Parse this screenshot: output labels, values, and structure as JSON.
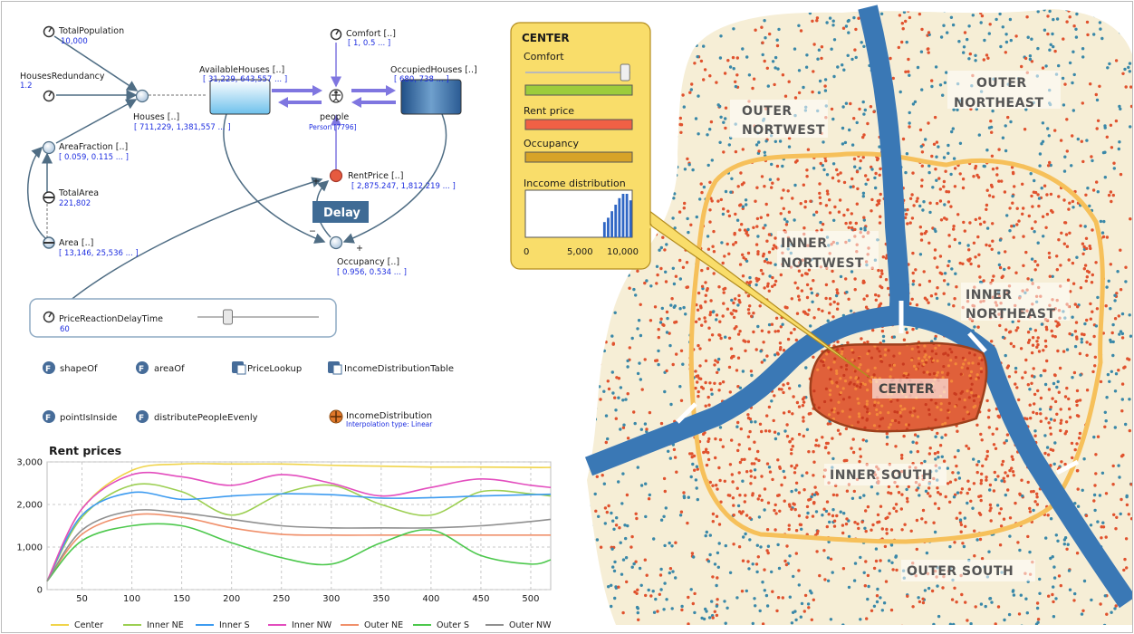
{
  "diagram": {
    "stocks": {
      "available": {
        "label": "AvailableHouses [..]",
        "value": "[ 31,229, 643,557 ... ]"
      },
      "occupied": {
        "label": "OccupiedHouses [..]",
        "value": "[ 680, 738 ... ]"
      }
    },
    "agent": {
      "label": "people",
      "value": "Person [7796]"
    },
    "params": {
      "total_population": {
        "label": "TotalPopulation",
        "value": "10,000"
      },
      "houses_redundancy": {
        "label": "HousesRedundancy",
        "value": "1.2"
      },
      "comfort": {
        "label": "Comfort [..]",
        "value": "[ 1, 0.5 ... ]"
      },
      "total_area": {
        "label": "TotalArea",
        "value": "221,802"
      },
      "price_reaction": {
        "label": "PriceReactionDelayTime",
        "value": "60",
        "slider_level": 0.25
      }
    },
    "variables": {
      "houses": {
        "label": "Houses [..]",
        "value": "[ 711,229, 1,381,557 ... ]"
      },
      "area_fraction": {
        "label": "AreaFraction [..]",
        "value": "[ 0.059, 0.115 ... ]"
      },
      "area": {
        "label": "Area [..]",
        "value": "[ 13,146, 25,536 ... ]"
      },
      "rent_price": {
        "label": "RentPrice [..]",
        "value": "[ 2,875.247, 1,812.219 ... ]"
      },
      "occupancy": {
        "label": "Occupancy [..]",
        "value": "[ 0.956, 0.534 ... ]"
      }
    },
    "delay_label": "Delay",
    "functions": [
      {
        "label": "shapeOf",
        "kind": "function"
      },
      {
        "label": "areaOf",
        "kind": "function"
      },
      {
        "label": "PriceLookup",
        "kind": "table"
      },
      {
        "label": "IncomeDistributionTable",
        "kind": "table"
      },
      {
        "label": "pointIsInside",
        "kind": "function"
      },
      {
        "label": "distributePeopleEvenly",
        "kind": "function"
      }
    ],
    "income_distribution": {
      "label": "IncomeDistribution",
      "sub": "Interpolation type: Linear"
    }
  },
  "chart_data": {
    "type": "line",
    "title": "Rent prices",
    "x": [
      15,
      50,
      100,
      150,
      200,
      250,
      300,
      350,
      400,
      450,
      500,
      520
    ],
    "xticks": [
      50,
      100,
      150,
      200,
      250,
      300,
      350,
      400,
      450,
      500
    ],
    "xlim": [
      15,
      520
    ],
    "ylim": [
      0,
      3000
    ],
    "yticks": [
      0,
      1000,
      2000,
      3000
    ],
    "ytick_labels": [
      "0",
      "1,000",
      "2,000",
      "3,000"
    ],
    "grid": true,
    "legend": "bottom",
    "series": [
      {
        "name": "Center",
        "color": "#f0d44a",
        "values": [
          200,
          1900,
          2800,
          2950,
          2950,
          2950,
          2920,
          2900,
          2880,
          2880,
          2870,
          2870
        ]
      },
      {
        "name": "Inner NE",
        "color": "#9ccf52",
        "values": [
          200,
          1700,
          2450,
          2300,
          1750,
          2250,
          2450,
          2000,
          1750,
          2300,
          2250,
          2200
        ]
      },
      {
        "name": "Inner S",
        "color": "#3d9bf0",
        "values": [
          200,
          1750,
          2280,
          2120,
          2200,
          2250,
          2230,
          2150,
          2160,
          2200,
          2230,
          2240
        ]
      },
      {
        "name": "Inner NW",
        "color": "#e34dbe",
        "values": [
          200,
          1900,
          2700,
          2650,
          2450,
          2700,
          2500,
          2200,
          2400,
          2600,
          2450,
          2400
        ]
      },
      {
        "name": "Outer NE",
        "color": "#f0906b",
        "values": [
          200,
          1300,
          1750,
          1700,
          1450,
          1300,
          1280,
          1280,
          1280,
          1280,
          1280,
          1280
        ]
      },
      {
        "name": "Outer S",
        "color": "#4cc84c",
        "values": [
          200,
          1150,
          1500,
          1500,
          1100,
          750,
          600,
          1100,
          1400,
          800,
          600,
          700
        ]
      },
      {
        "name": "Outer NW",
        "color": "#909090",
        "values": [
          200,
          1400,
          1850,
          1800,
          1650,
          1500,
          1450,
          1450,
          1450,
          1500,
          1600,
          1650
        ]
      }
    ]
  },
  "panel": {
    "title": "CENTER",
    "comfort_label": "Comfort",
    "comfort_level": 0.95,
    "rent_label": "Rent price",
    "occupancy_label": "Occupancy",
    "income_label": "Inccome distribution",
    "colors": {
      "comfort": "#9ccc3c",
      "rent": "#f06045",
      "occupancy": "#d7a328",
      "panel_bg": "#f9dd6a"
    },
    "hist": {
      "xticks": [
        "0",
        "5,000",
        "10,000"
      ],
      "bins_x": [
        7400,
        7750,
        8100,
        8450,
        8800,
        9150,
        9500,
        9850
      ],
      "heights": [
        0.35,
        0.45,
        0.6,
        0.75,
        0.9,
        1.0,
        1.0,
        0.85
      ]
    }
  },
  "map": {
    "regions": [
      "OUTER NORTWEST",
      "OUTER NORTHEAST",
      "INNER NORTWEST",
      "INNER NORTHEAST",
      "CENTER",
      "INNER SOUTH",
      "OUTER SOUTH"
    ],
    "colors": {
      "river": "#3a78b5",
      "ring": "#f6c05a",
      "land": "#f6eed6",
      "center_fill": "#e0603a",
      "inner_dot": "#e0522e",
      "outer_dot": "#3a88a8"
    }
  }
}
